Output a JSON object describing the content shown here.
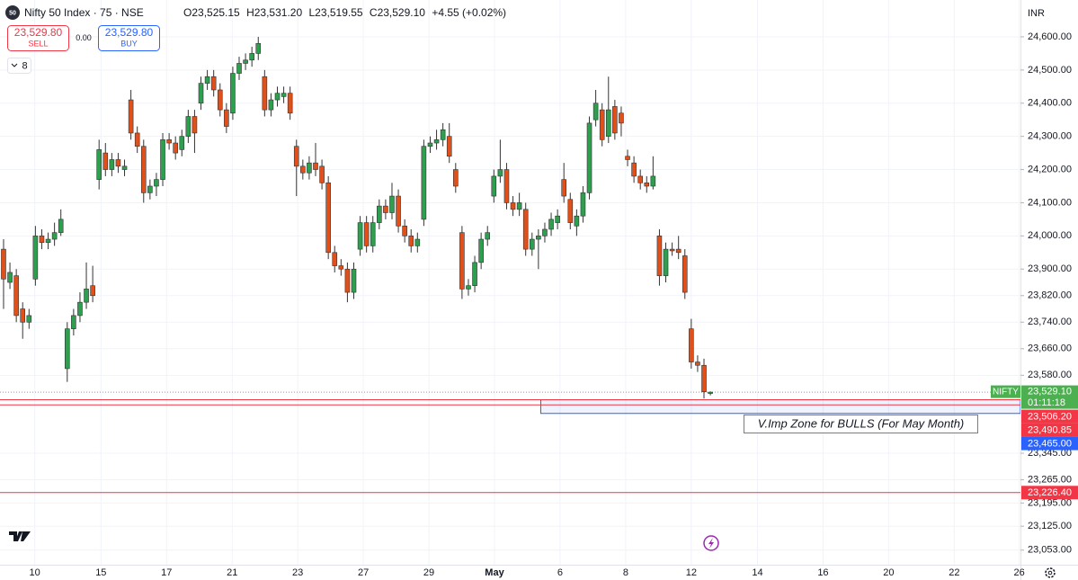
{
  "header": {
    "symbol_icon": "50",
    "title": "Nifty 50 Index · 75 · NSE",
    "ohlc": [
      {
        "key": "O",
        "value": "23,525.15"
      },
      {
        "key": "H",
        "value": "23,531.20"
      },
      {
        "key": "L",
        "value": "23,519.55"
      },
      {
        "key": "C",
        "value": "23,529.10"
      }
    ],
    "change": "+4.55 (+0.02%)"
  },
  "trade": {
    "sell_price": "23,529.80",
    "sell_label": "SELL",
    "spread": "0.00",
    "buy_price": "23,529.80",
    "buy_label": "BUY"
  },
  "indicators_count": "8",
  "chart_data": {
    "type": "candlestick",
    "currency": "INR",
    "up_color": "#2e9e4f",
    "down_color": "#e0501b",
    "wick_color": "#333333",
    "grid": true,
    "open": [
      23960,
      23860,
      23880,
      23780,
      23740,
      23870,
      24000,
      23980,
      23990,
      24010,
      23600,
      23720,
      23760,
      23800,
      23850,
      24170,
      24250,
      24200,
      24230,
      24200,
      24410,
      24310,
      24270,
      24130,
      24150,
      24170,
      24290,
      24280,
      24260,
      24300,
      24360,
      24400,
      24460,
      24480,
      24440,
      24380,
      24370,
      24490,
      24520,
      24530,
      24550,
      24480,
      24380,
      24410,
      24420,
      24430,
      24270,
      24210,
      24190,
      24220,
      24210,
      24160,
      23950,
      23910,
      23900,
      23830,
      23960,
      24040,
      23970,
      24040,
      24090,
      24070,
      24120,
      24030,
      24000,
      23970,
      24050,
      24270,
      24280,
      24290,
      24300,
      24200,
      24010,
      23840,
      23850,
      23920,
      23990,
      24120,
      24180,
      24200,
      24100,
      24080,
      24080,
      23960,
      23990,
      24000,
      24020,
      24040,
      24170,
      24110,
      24030,
      24060,
      24130,
      24350,
      24380,
      24300,
      24390,
      24370,
      24240,
      24220,
      24180,
      24160,
      24150,
      24000,
      23880,
      23960,
      23960,
      23940,
      23720,
      23620,
      23610,
      23525.15
    ],
    "high": [
      23990,
      23920,
      23900,
      23800,
      23780,
      24030,
      24020,
      24010,
      24040,
      24080,
      23740,
      23780,
      23830,
      23920,
      23910,
      24290,
      24280,
      24250,
      24250,
      24230,
      24440,
      24330,
      24290,
      24170,
      24190,
      24310,
      24310,
      24300,
      24320,
      24380,
      24380,
      24480,
      24500,
      24500,
      24460,
      24400,
      24510,
      24540,
      24550,
      24570,
      24600,
      24500,
      24430,
      24450,
      24450,
      24450,
      24290,
      24230,
      24240,
      24280,
      24230,
      24180,
      23970,
      23930,
      23920,
      23920,
      24060,
      24060,
      24060,
      24110,
      24110,
      24160,
      24140,
      24050,
      24020,
      24010,
      24290,
      24300,
      24320,
      24340,
      24340,
      24220,
      24030,
      23870,
      23940,
      24010,
      24030,
      24200,
      24290,
      24220,
      24120,
      24130,
      24100,
      24010,
      24020,
      24040,
      24070,
      24080,
      24220,
      24130,
      24080,
      24150,
      24360,
      24440,
      24400,
      24480,
      24410,
      24390,
      24260,
      24240,
      24200,
      24180,
      24240,
      24020,
      23980,
      23980,
      24000,
      23960,
      23750,
      23640,
      23630,
      23531.2
    ],
    "low": [
      23780,
      23840,
      23740,
      23690,
      23720,
      23850,
      23960,
      23960,
      23970,
      24000,
      23560,
      23700,
      23740,
      23780,
      23800,
      24140,
      24180,
      24180,
      24190,
      24180,
      24290,
      24250,
      24100,
      24110,
      24120,
      24150,
      24260,
      24230,
      24240,
      24280,
      24250,
      24380,
      24440,
      24420,
      24360,
      24310,
      24350,
      24470,
      24500,
      24510,
      24530,
      24360,
      24360,
      24390,
      24400,
      24350,
      24120,
      24170,
      24170,
      24180,
      24140,
      23930,
      23890,
      23880,
      23800,
      23810,
      23940,
      23950,
      23950,
      24020,
      24050,
      24050,
      24010,
      23980,
      23950,
      23950,
      24030,
      24250,
      24260,
      24270,
      24220,
      24130,
      23810,
      23820,
      23830,
      23900,
      23970,
      24100,
      24160,
      24080,
      24060,
      24060,
      23940,
      23940,
      23900,
      23980,
      24000,
      24020,
      24100,
      24020,
      24000,
      24040,
      24110,
      24330,
      24270,
      24280,
      24290,
      24300,
      24210,
      24160,
      24140,
      24130,
      24140,
      23850,
      23860,
      23940,
      23930,
      23810,
      23600,
      23590,
      23510,
      23519.55
    ],
    "close": [
      23870,
      23890,
      23760,
      23740,
      23760,
      24000,
      23980,
      23990,
      24010,
      24050,
      23720,
      23760,
      23800,
      23840,
      23820,
      24260,
      24200,
      24230,
      24210,
      24210,
      24310,
      24270,
      24130,
      24150,
      24170,
      24290,
      24280,
      24250,
      24300,
      24360,
      24310,
      24460,
      24480,
      24440,
      24380,
      24330,
      24490,
      24520,
      24530,
      24550,
      24580,
      24380,
      24410,
      24430,
      24430,
      24370,
      24210,
      24190,
      24220,
      24200,
      24160,
      23950,
      23910,
      23900,
      23830,
      23900,
      24040,
      23970,
      24040,
      24090,
      24070,
      24120,
      24030,
      24000,
      23970,
      23990,
      24270,
      24280,
      24290,
      24320,
      24240,
      24150,
      23840,
      23850,
      23920,
      23990,
      24010,
      24180,
      24200,
      24100,
      24080,
      24100,
      23960,
      23990,
      24000,
      24020,
      24050,
      24060,
      24120,
      24040,
      24060,
      24130,
      24340,
      24400,
      24290,
      24380,
      24310,
      24340,
      24230,
      24180,
      24160,
      24150,
      24180,
      23880,
      23960,
      23955,
      23950,
      23830,
      23620,
      23610,
      23530,
      23529.1
    ],
    "xlim": [
      -0.56,
      159.7
    ],
    "xticks": [
      {
        "value": 4.9,
        "label": "10"
      },
      {
        "value": 15.3,
        "label": "15"
      },
      {
        "value": 25.6,
        "label": "17"
      },
      {
        "value": 35.9,
        "label": "21"
      },
      {
        "value": 46.2,
        "label": "23"
      },
      {
        "value": 56.5,
        "label": "27"
      },
      {
        "value": 66.8,
        "label": "29"
      },
      {
        "value": 77.1,
        "label": "May"
      },
      {
        "value": 87.4,
        "label": "6"
      },
      {
        "value": 97.7,
        "label": "8"
      },
      {
        "value": 108.0,
        "label": "12"
      },
      {
        "value": 118.4,
        "label": "14"
      },
      {
        "value": 128.7,
        "label": "16"
      },
      {
        "value": 139.0,
        "label": "20"
      },
      {
        "value": 149.3,
        "label": "22"
      },
      {
        "value": 159.5,
        "label": "26"
      }
    ],
    "ylim": [
      23009,
      24711
    ],
    "yticks": [
      {
        "value": 24600,
        "label": "24,600.00"
      },
      {
        "value": 24500,
        "label": "24,500.00"
      },
      {
        "value": 24400,
        "label": "24,400.00"
      },
      {
        "value": 24300,
        "label": "24,300.00"
      },
      {
        "value": 24200,
        "label": "24,200.00"
      },
      {
        "value": 24100,
        "label": "24,100.00"
      },
      {
        "value": 24000,
        "label": "24,000.00"
      },
      {
        "value": 23900,
        "label": "23,900.00"
      },
      {
        "value": 23820,
        "label": "23,820.00"
      },
      {
        "value": 23740,
        "label": "23,740.00"
      },
      {
        "value": 23660,
        "label": "23,660.00"
      },
      {
        "value": 23580,
        "label": "23,580.00"
      },
      {
        "value": 23345,
        "label": "23,345.00"
      },
      {
        "value": 23265,
        "label": "23,265.00"
      },
      {
        "value": 23195,
        "label": "23,195.00"
      },
      {
        "value": 23125,
        "label": "23,125.00"
      },
      {
        "value": 23053,
        "label": "23,053.00"
      }
    ],
    "lines": [
      {
        "value": 23506.2,
        "label": "23,506.20",
        "color": "#f23645"
      },
      {
        "value": 23490.85,
        "label": "23,490.85",
        "color": "#f23645"
      },
      {
        "value": 23226.4,
        "label": "23,226.40",
        "color": "#f23645"
      }
    ],
    "zone": {
      "range": [
        23465,
        23506.2
      ],
      "label": "23,465.00",
      "color": "#2962ff",
      "text": "V.Imp Zone for BULLS (For May Month)"
    },
    "last_price": {
      "symbol": "NIFTY",
      "value": 23529.1,
      "label": "23,529.10",
      "countdown": "01:11:18",
      "color": "#4caf50"
    }
  }
}
